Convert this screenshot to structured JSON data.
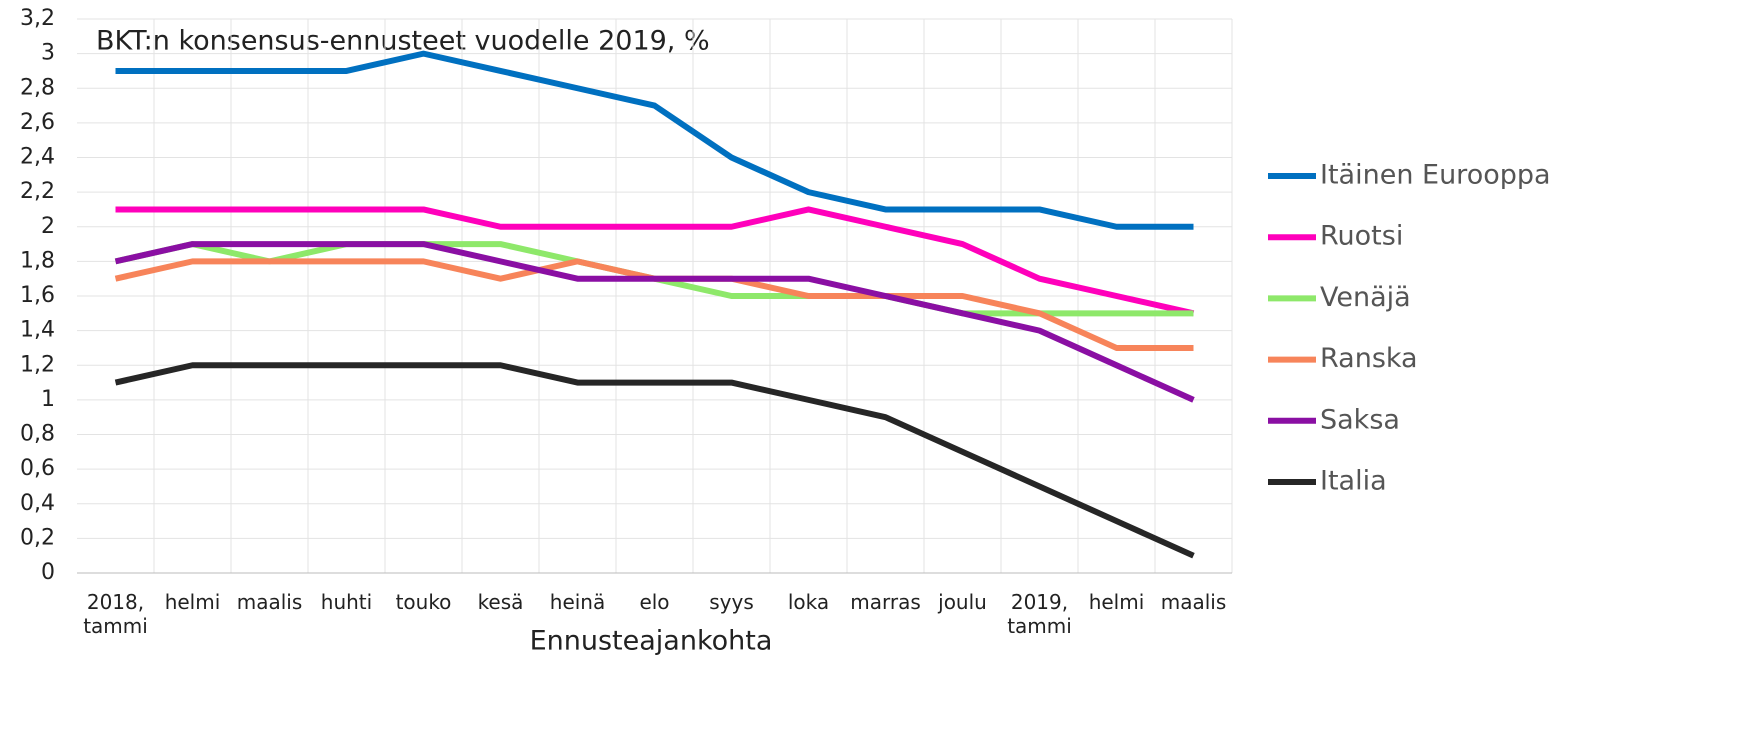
{
  "chart_data": {
    "type": "line",
    "title": "BKT:n konsensus-ennusteet vuodelle 2019, %",
    "x_label": "Ennusteajankohta",
    "categories": [
      "2018, tammi",
      "helmi",
      "maalis",
      "huhti",
      "touko",
      "kesä",
      "heinä",
      "elo",
      "syys",
      "loka",
      "marras",
      "joulu",
      "2019, tammi",
      "helmi",
      "maalis"
    ],
    "ylim": [
      0,
      3.2
    ],
    "yticks": [
      0,
      {
        "value": 0.2,
        "label": "0,2"
      },
      {
        "value": 0.4,
        "label": "0,4"
      },
      {
        "value": 0.6,
        "label": "0,6"
      },
      {
        "value": 0.8,
        "label": "0,8"
      },
      1,
      {
        "value": 1.2,
        "label": "1,2"
      },
      {
        "value": 1.4,
        "label": "1,4"
      },
      {
        "value": 1.6,
        "label": "1,6"
      },
      {
        "value": 1.8,
        "label": "1,8"
      },
      2,
      {
        "value": 2.2,
        "label": "2,2"
      },
      {
        "value": 2.4,
        "label": "2,4"
      },
      {
        "value": 2.6,
        "label": "2,6"
      },
      {
        "value": 2.8,
        "label": "2,8"
      },
      3,
      {
        "value": 3.2,
        "label": "3,2"
      }
    ],
    "grid": true,
    "legend": "right",
    "series": [
      {
        "name": "Itäinen Eurooppa",
        "color": "#0070c0",
        "values": [
          2.9,
          2.9,
          2.9,
          2.9,
          3.0,
          2.9,
          2.8,
          2.7,
          2.4,
          2.2,
          2.1,
          2.1,
          2.1,
          2.0,
          2.0
        ]
      },
      {
        "name": "Ruotsi",
        "color": "#ff00bb",
        "values": [
          2.1,
          2.1,
          2.1,
          2.1,
          2.1,
          2.0,
          2.0,
          2.0,
          2.0,
          2.1,
          2.0,
          1.9,
          1.7,
          1.6,
          1.5
        ]
      },
      {
        "name": "Venäjä",
        "color": "#8ee86a",
        "values": [
          1.8,
          1.9,
          1.8,
          1.9,
          1.9,
          1.9,
          1.8,
          1.7,
          1.6,
          1.6,
          1.6,
          1.5,
          1.5,
          1.5,
          1.5
        ]
      },
      {
        "name": "Ranska",
        "color": "#f7845a",
        "values": [
          1.7,
          1.8,
          1.8,
          1.8,
          1.8,
          1.7,
          1.8,
          1.7,
          1.7,
          1.6,
          1.6,
          1.6,
          1.5,
          1.3,
          1.3
        ]
      },
      {
        "name": "Saksa",
        "color": "#8a0fa3",
        "values": [
          1.8,
          1.9,
          1.9,
          1.9,
          1.9,
          1.8,
          1.7,
          1.7,
          1.7,
          1.7,
          1.6,
          1.5,
          1.4,
          1.2,
          1.0
        ]
      },
      {
        "name": "Italia",
        "color": "#262626",
        "values": [
          1.1,
          1.2,
          1.2,
          1.2,
          1.2,
          1.2,
          1.1,
          1.1,
          1.1,
          1.0,
          0.9,
          0.7,
          0.5,
          0.3,
          0.1
        ]
      }
    ]
  }
}
